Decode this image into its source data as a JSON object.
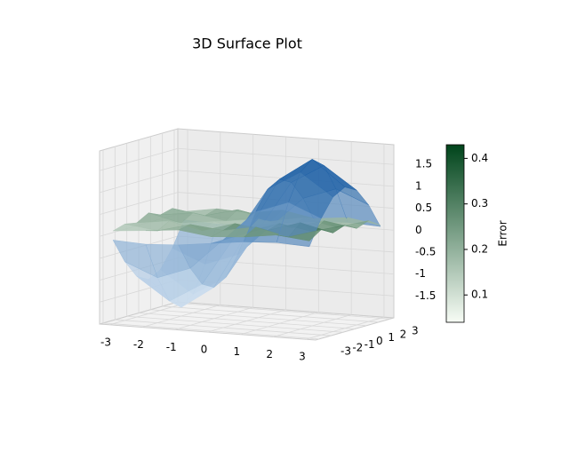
{
  "chart_data": {
    "type": "surface3d",
    "title": "3D Surface Plot",
    "x": [
      -3,
      -2,
      -1,
      0,
      1,
      2,
      3
    ],
    "y": [
      -3,
      -2,
      -1,
      0,
      1,
      2,
      3
    ],
    "z": [
      [
        -0.09,
        -0.13,
        -0.09,
        0,
        0.09,
        0.13,
        0.09
      ],
      [
        -0.66,
        -0.97,
        -0.7,
        0,
        0.7,
        0.97,
        0.66
      ],
      [
        -1.07,
        -1.58,
        -1.14,
        0,
        1.14,
        1.58,
        1.07
      ],
      [
        -1.22,
        -1.8,
        -1.29,
        0,
        1.29,
        1.8,
        1.22
      ],
      [
        -1.07,
        -1.58,
        -1.14,
        0,
        1.14,
        1.58,
        1.07
      ],
      [
        -0.66,
        -0.97,
        -0.7,
        0,
        0.7,
        0.97,
        0.66
      ],
      [
        -0.09,
        -0.13,
        -0.09,
        0,
        0.09,
        0.13,
        0.09
      ]
    ],
    "error": [
      [
        0.12,
        0.18,
        0.25,
        0.15,
        0.2,
        0.3,
        0.22
      ],
      [
        0.2,
        0.1,
        0.3,
        0.22,
        0.35,
        0.18,
        0.4
      ],
      [
        0.15,
        0.25,
        0.08,
        0.3,
        0.2,
        0.43,
        0.25
      ],
      [
        0.3,
        0.12,
        0.22,
        0.05,
        0.28,
        0.15,
        0.35
      ],
      [
        0.18,
        0.28,
        0.15,
        0.25,
        0.1,
        0.32,
        0.2
      ],
      [
        0.25,
        0.14,
        0.33,
        0.12,
        0.26,
        0.09,
        0.3
      ],
      [
        0.1,
        0.22,
        0.18,
        0.3,
        0.16,
        0.24,
        0.12
      ]
    ],
    "xlim": [
      -3.3,
      3.3
    ],
    "ylim": [
      -3.3,
      3.3
    ],
    "zlim": [
      -2.0,
      1.95
    ],
    "xticks": [
      -3,
      -2,
      -1,
      0,
      1,
      2,
      3
    ],
    "yticks": [
      -3,
      -2,
      -1,
      0,
      1,
      2,
      3
    ],
    "zticks": [
      -1.5,
      -1.0,
      -0.5,
      0.0,
      0.5,
      1.0,
      1.5
    ],
    "surface_colors": [
      "#deebf7",
      "#08519c"
    ],
    "colorbar": {
      "label": "Error",
      "lim": [
        0.04,
        0.43
      ],
      "ticks": [
        0.1,
        0.2,
        0.3,
        0.4
      ],
      "colors": [
        "#f7fcf5",
        "#00441b"
      ]
    },
    "grid": true
  }
}
